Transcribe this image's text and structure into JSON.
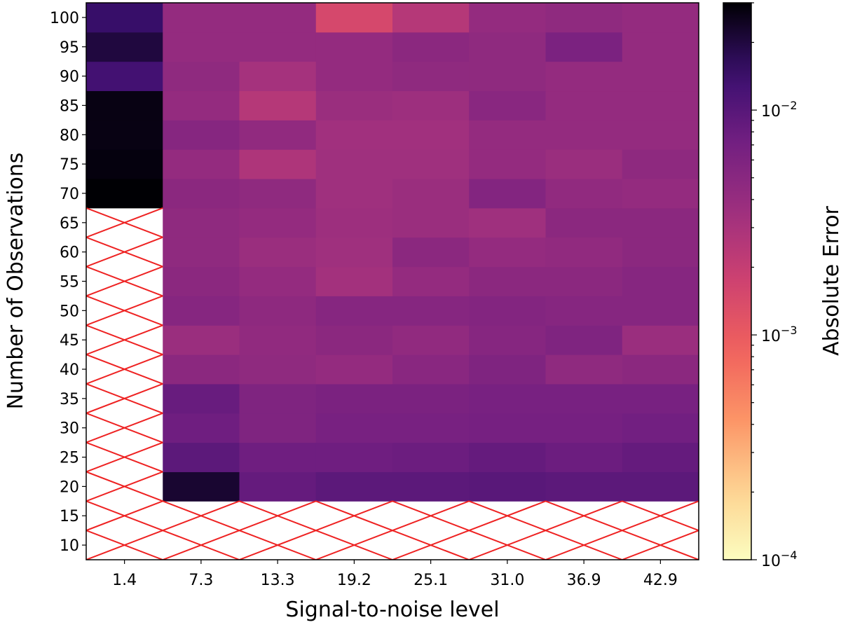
{
  "chart_data": {
    "type": "heatmap",
    "xlabel": "Signal-to-noise level",
    "ylabel": "Number of Observations",
    "x_tick_labels": [
      "1.4",
      "7.3",
      "13.3",
      "19.2",
      "25.1",
      "31.0",
      "36.9",
      "42.9"
    ],
    "y_tick_labels": [
      "10",
      "15",
      "20",
      "25",
      "30",
      "35",
      "40",
      "45",
      "50",
      "55",
      "60",
      "65",
      "70",
      "75",
      "80",
      "85",
      "90",
      "95",
      "100"
    ],
    "y_values": [
      10,
      15,
      20,
      25,
      30,
      35,
      40,
      45,
      50,
      55,
      60,
      65,
      70,
      75,
      80,
      85,
      90,
      95,
      100
    ],
    "colorbar": {
      "label": "Absolute Error",
      "scale": "log",
      "colormap": "magma_r",
      "range": [
        0.0001,
        0.03
      ],
      "tick_values": [
        0.0001,
        0.001,
        0.01
      ],
      "tick_bases": [
        "10",
        "10",
        "10"
      ],
      "tick_exponents": [
        "−4",
        "−3",
        "−2"
      ]
    },
    "missing_hatch_color": "#ee2222",
    "values": [
      [
        null,
        null,
        null,
        null,
        null,
        null,
        null,
        null
      ],
      [
        null,
        null,
        null,
        null,
        null,
        null,
        null,
        null
      ],
      [
        null,
        0.022,
        0.0085,
        0.0095,
        0.0095,
        0.0098,
        0.0095,
        0.0095
      ],
      [
        null,
        0.0095,
        0.0075,
        0.0075,
        0.0078,
        0.0085,
        0.0078,
        0.0085
      ],
      [
        null,
        0.0075,
        0.0058,
        0.0065,
        0.0065,
        0.0068,
        0.0068,
        0.0072
      ],
      [
        null,
        0.0082,
        0.0058,
        0.0062,
        0.0062,
        0.0065,
        0.0065,
        0.0065
      ],
      [
        null,
        0.0048,
        0.0045,
        0.0042,
        0.005,
        0.0058,
        0.0045,
        0.0048
      ],
      [
        null,
        0.0038,
        0.0044,
        0.0048,
        0.0044,
        0.0052,
        0.0058,
        0.0038
      ],
      [
        null,
        0.0052,
        0.0046,
        0.0052,
        0.0052,
        0.0055,
        0.0052,
        0.0052
      ],
      [
        null,
        0.0048,
        0.0042,
        0.0033,
        0.0042,
        0.0048,
        0.0048,
        0.0052
      ],
      [
        null,
        0.0045,
        0.0038,
        0.0035,
        0.0048,
        0.0042,
        0.0044,
        0.0048
      ],
      [
        null,
        0.0045,
        0.0042,
        0.0036,
        0.0038,
        0.0035,
        0.0048,
        0.0048
      ],
      [
        0.03,
        0.0048,
        0.0045,
        0.0035,
        0.0038,
        0.0055,
        0.0044,
        0.0042
      ],
      [
        0.028,
        0.0042,
        0.0028,
        0.0035,
        0.0035,
        0.0042,
        0.0038,
        0.0046
      ],
      [
        0.027,
        0.0052,
        0.0044,
        0.0034,
        0.0034,
        0.0042,
        0.0042,
        0.0042
      ],
      [
        0.027,
        0.0042,
        0.0025,
        0.0038,
        0.0036,
        0.005,
        0.0042,
        0.0042
      ],
      [
        0.013,
        0.0045,
        0.0032,
        0.0042,
        0.0045,
        0.0045,
        0.0042,
        0.0042
      ],
      [
        0.02,
        0.0042,
        0.0042,
        0.0042,
        0.0048,
        0.0045,
        0.0062,
        0.0042
      ],
      [
        0.015,
        0.0042,
        0.0042,
        0.0015,
        0.0025,
        0.0042,
        0.0045,
        0.0042
      ]
    ]
  }
}
